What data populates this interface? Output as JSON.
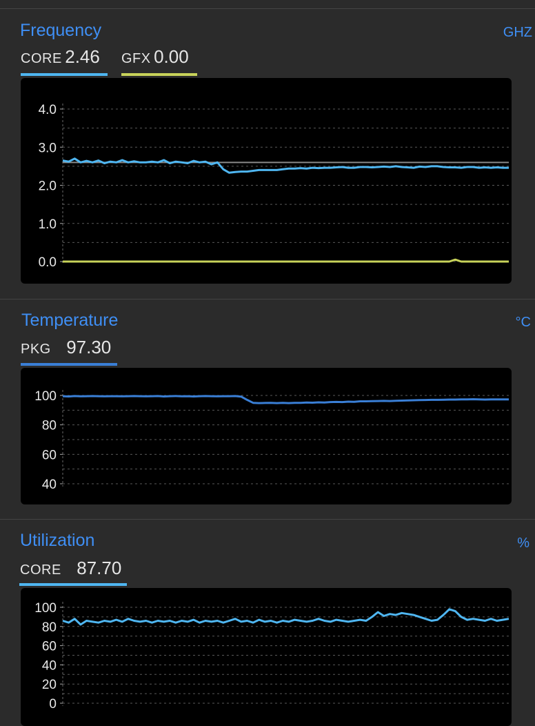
{
  "colors": {
    "accent": "#3f8ff5",
    "core": "#4fb6f1",
    "gfx": "#c8d35a",
    "pkg": "#3a7fd6",
    "ref_line": "#8a8a8a"
  },
  "frequency": {
    "title": "Frequency",
    "unit": "GHZ",
    "core_label": "CORE",
    "core_value": "2.46",
    "gfx_label": "GFX",
    "gfx_value": "0.00",
    "ticks": [
      "4.0",
      "3.0",
      "2.0",
      "1.0",
      "0.0"
    ]
  },
  "temperature": {
    "title": "Temperature",
    "unit": "°C",
    "pkg_label": "PKG",
    "pkg_value": "97.30",
    "ticks": [
      "100",
      "80",
      "60",
      "40"
    ]
  },
  "utilization": {
    "title": "Utilization",
    "unit": "%",
    "core_label": "CORE",
    "core_value": "87.70",
    "ticks": [
      "100",
      "80",
      "60",
      "40",
      "20",
      "0"
    ]
  },
  "chart_data": [
    {
      "type": "line",
      "title": "Frequency",
      "ylim": [
        0,
        4
      ],
      "reference_line": 2.6,
      "series": [
        {
          "name": "CORE",
          "values": [
            2.65,
            2.62,
            2.7,
            2.6,
            2.64,
            2.6,
            2.65,
            2.58,
            2.62,
            2.6,
            2.66,
            2.6,
            2.63,
            2.6,
            2.6,
            2.62,
            2.6,
            2.66,
            2.58,
            2.62,
            2.6,
            2.58,
            2.64,
            2.6,
            2.62,
            2.55,
            2.6,
            2.42,
            2.33,
            2.35,
            2.36,
            2.36,
            2.38,
            2.4,
            2.4,
            2.4,
            2.4,
            2.42,
            2.44,
            2.44,
            2.45,
            2.44,
            2.46,
            2.45,
            2.46,
            2.46,
            2.47,
            2.48,
            2.46,
            2.46,
            2.48,
            2.48,
            2.47,
            2.48,
            2.49,
            2.48,
            2.5,
            2.48,
            2.47,
            2.46,
            2.49,
            2.48,
            2.5,
            2.5,
            2.48,
            2.47,
            2.47,
            2.46,
            2.48,
            2.48,
            2.46,
            2.47,
            2.46,
            2.47,
            2.46,
            2.46
          ]
        },
        {
          "name": "GFX",
          "values": [
            0,
            0,
            0,
            0,
            0,
            0,
            0,
            0,
            0,
            0,
            0,
            0,
            0,
            0,
            0,
            0,
            0,
            0,
            0,
            0,
            0,
            0,
            0,
            0,
            0,
            0,
            0,
            0,
            0,
            0,
            0,
            0,
            0,
            0,
            0,
            0,
            0,
            0,
            0,
            0,
            0,
            0,
            0,
            0,
            0,
            0,
            0,
            0,
            0,
            0,
            0,
            0,
            0,
            0,
            0,
            0,
            0,
            0,
            0,
            0,
            0,
            0,
            0,
            0,
            0,
            0,
            0.05,
            0,
            0,
            0,
            0,
            0,
            0,
            0,
            0,
            0
          ]
        }
      ]
    },
    {
      "type": "line",
      "title": "Temperature",
      "ylim": [
        40,
        100
      ],
      "series": [
        {
          "name": "PKG",
          "values": [
            99.5,
            99.3,
            99.6,
            99.4,
            99.5,
            99.6,
            99.5,
            99.4,
            99.5,
            99.5,
            99.4,
            99.5,
            99.6,
            99.5,
            99.4,
            99.5,
            99.6,
            99.3,
            99.5,
            99.6,
            99.4,
            99.5,
            99.3,
            99.5,
            99.6,
            99.5,
            99.4,
            99.5,
            99.5,
            99.6,
            99.2,
            97.0,
            95.0,
            94.8,
            94.9,
            95.0,
            94.8,
            95.0,
            94.8,
            95.0,
            95.0,
            95.2,
            95.1,
            95.3,
            95.2,
            95.5,
            95.6,
            95.5,
            95.8,
            95.7,
            96.0,
            96.0,
            96.1,
            96.2,
            96.3,
            96.2,
            96.4,
            96.5,
            96.6,
            96.7,
            96.8,
            96.9,
            97.0,
            97.0,
            97.1,
            97.2,
            97.2,
            97.3,
            97.3,
            97.4,
            97.3,
            97.2,
            97.3,
            97.3,
            97.3,
            97.3
          ]
        }
      ]
    },
    {
      "type": "line",
      "title": "Utilization",
      "ylim": [
        0,
        100
      ],
      "series": [
        {
          "name": "CORE",
          "values": [
            86,
            84,
            88,
            82,
            86,
            85,
            84,
            86,
            85,
            87,
            85,
            88,
            86,
            85,
            86,
            84,
            86,
            85,
            86,
            84,
            86,
            85,
            87,
            84,
            86,
            85,
            86,
            84,
            86,
            88,
            85,
            86,
            84,
            87,
            85,
            86,
            84,
            86,
            85,
            87,
            86,
            85,
            86,
            88,
            86,
            85,
            87,
            86,
            85,
            86,
            87,
            86,
            90,
            95,
            91,
            93,
            92,
            94,
            93,
            92,
            90,
            88,
            86,
            87,
            92,
            98,
            96,
            90,
            87,
            88,
            87,
            86,
            88,
            86,
            87,
            88
          ]
        }
      ]
    }
  ]
}
